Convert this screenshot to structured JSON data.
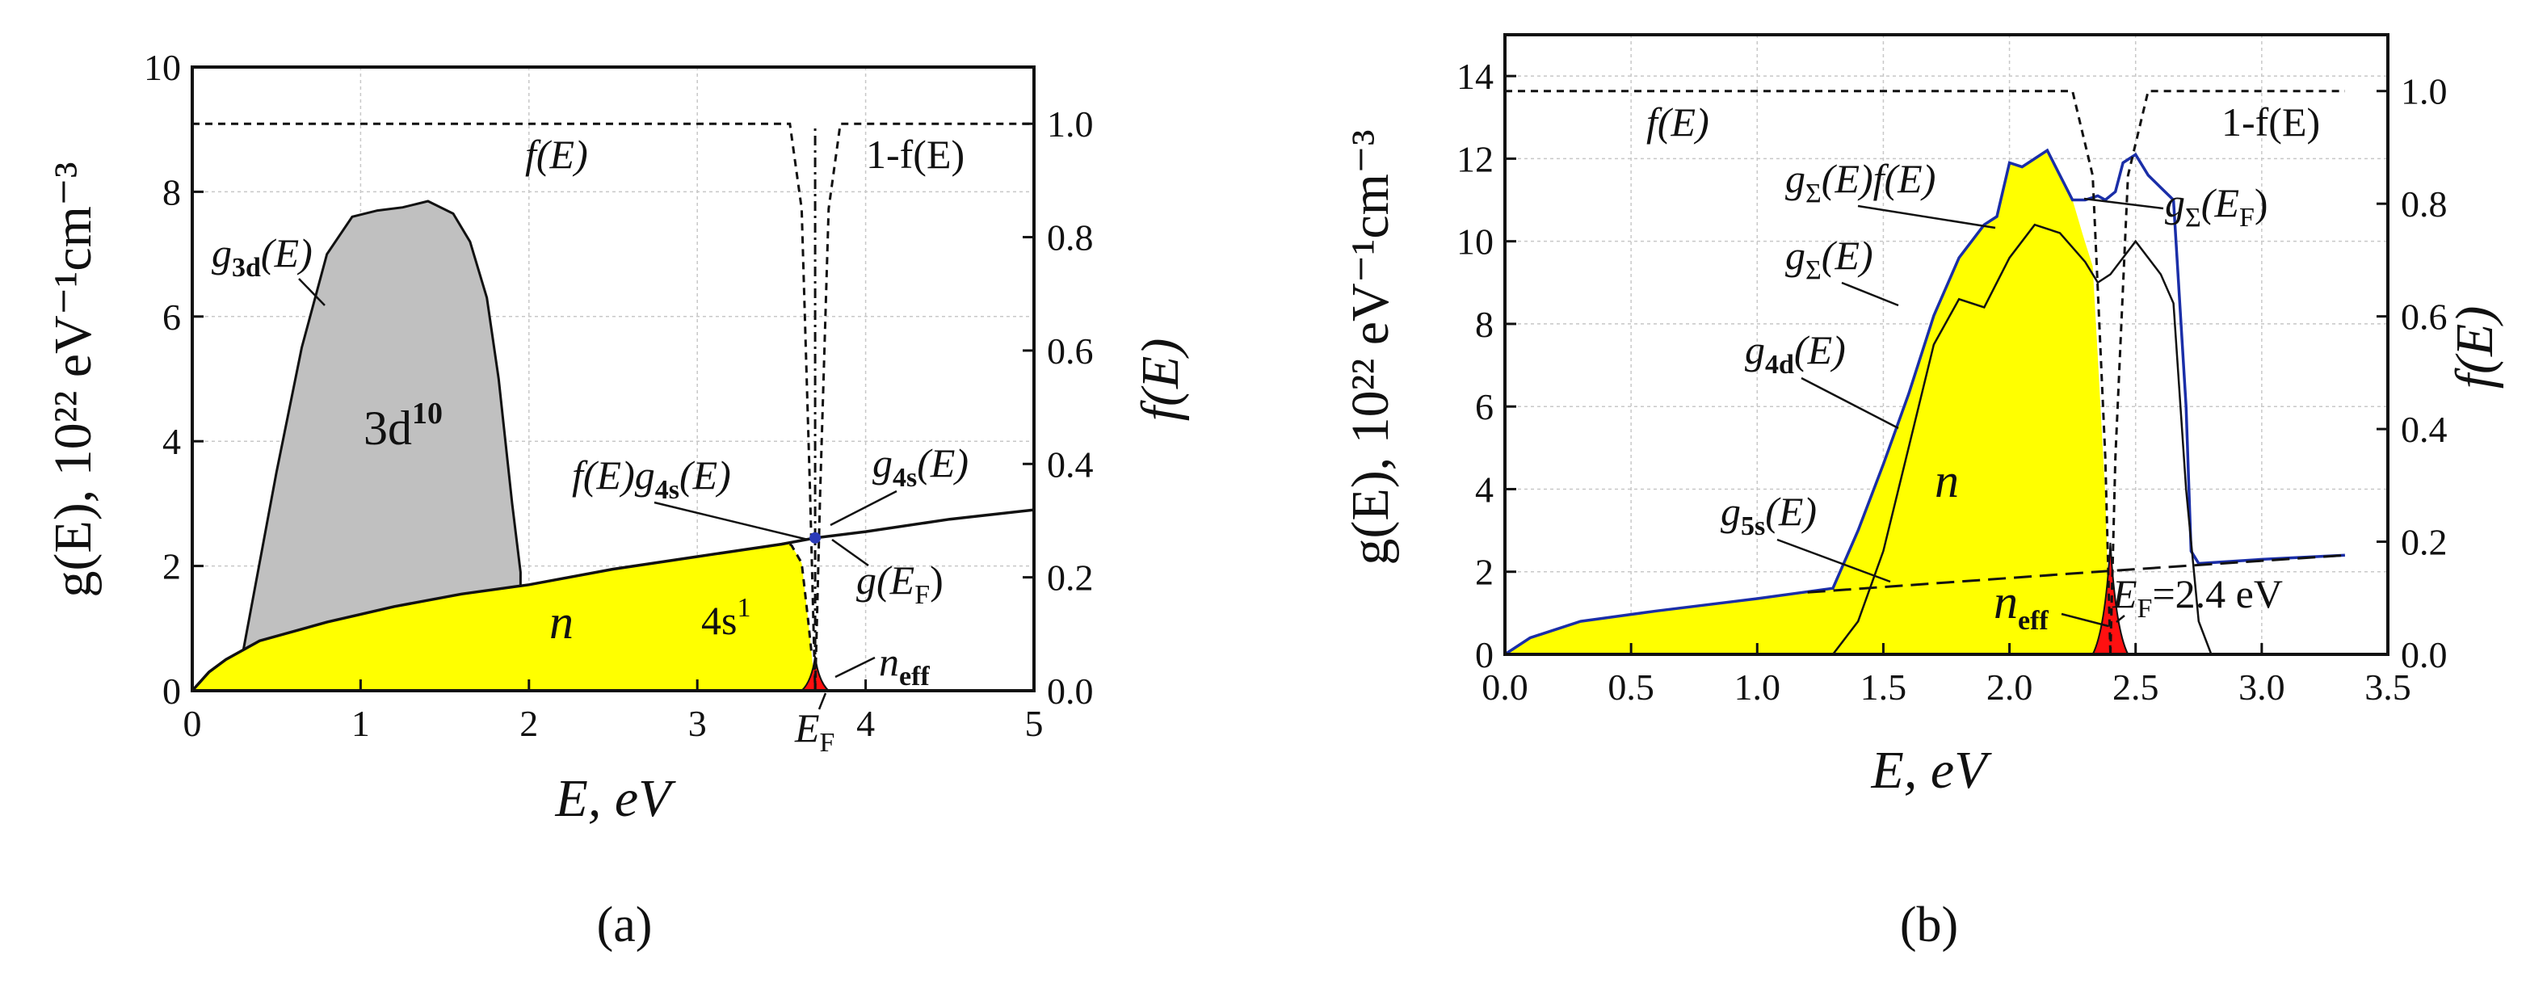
{
  "chart_data": [
    {
      "type": "area",
      "panel_label": "(a)",
      "xlabel": "E, eV",
      "ylabel": "g(E), 10²² eV⁻¹cm⁻³",
      "y2label": "f(E)",
      "xlim": [
        0,
        5
      ],
      "ylim": [
        0,
        10
      ],
      "y2lim": [
        0,
        1.1
      ],
      "xticks": [
        "0",
        "1",
        "2",
        "3",
        "4",
        "5"
      ],
      "yticks": [
        "0",
        "2",
        "4",
        "6",
        "8",
        "10"
      ],
      "y2ticks": [
        "0.0",
        "0.2",
        "0.4",
        "0.6",
        "0.8",
        "1.0"
      ],
      "fermi_energy": 3.7,
      "series": [
        {
          "name": "g3d(E)",
          "fill": "#c0c0c0",
          "x": [
            0.3,
            0.5,
            0.65,
            0.8,
            0.95,
            1.1,
            1.25,
            1.4,
            1.55,
            1.65,
            1.75,
            1.82,
            1.9,
            1.95
          ],
          "y": [
            0.6,
            3.5,
            5.5,
            7.0,
            7.6,
            7.7,
            7.75,
            7.85,
            7.65,
            7.2,
            6.3,
            5.0,
            3.0,
            1.9
          ]
        },
        {
          "name": "g4s(E)",
          "fill": "#ffff00",
          "x": [
            0,
            0.1,
            0.2,
            0.4,
            0.8,
            1.2,
            1.6,
            2.0,
            2.5,
            3.0,
            3.5,
            3.7,
            4.0,
            4.5,
            5.0
          ],
          "y": [
            0,
            0.3,
            0.5,
            0.8,
            1.1,
            1.35,
            1.55,
            1.7,
            1.95,
            2.15,
            2.35,
            2.45,
            2.55,
            2.75,
            2.9
          ]
        },
        {
          "name": "f(E)",
          "axis": "right",
          "x": [
            0,
            3.55,
            3.62,
            3.67,
            3.7
          ],
          "y": [
            1.0,
            1.0,
            0.85,
            0.35,
            0.0
          ]
        },
        {
          "name": "1-f(E)",
          "axis": "right",
          "x": [
            3.7,
            3.73,
            3.78,
            3.85,
            5.0
          ],
          "y": [
            0.0,
            0.35,
            0.85,
            1.0,
            1.0
          ]
        }
      ],
      "labels": {
        "g3d": "g",
        "g3d_sub": "3d",
        "g3d_arg": "(E)",
        "fE": "f(E)",
        "one_minus_fE": "1-f(E)",
        "d10": "3d",
        "d10_sup": "10",
        "fg4s": "f(E)g",
        "fg4s_sub": "4s",
        "fg4s_arg": "(E)",
        "g4s": "g",
        "g4s_sub": "4s",
        "g4s_arg": "(E)",
        "n": "n",
        "s1": "4s",
        "s1_sup": "1",
        "gEF": "g(E",
        "gEF_sub": "F",
        "gEF_close": ")",
        "neff": "n",
        "neff_sub": "eff",
        "EF": "E",
        "EF_sub": "F"
      }
    },
    {
      "type": "area",
      "panel_label": "(b)",
      "xlabel": "E, eV",
      "ylabel": "g(E), 10²² eV⁻¹cm⁻³",
      "y2label": "f(E)",
      "xlim": [
        0,
        3.5
      ],
      "ylim": [
        0,
        15
      ],
      "y2lim": [
        0,
        1.1
      ],
      "xticks": [
        "0.0",
        "0.5",
        "1.0",
        "1.5",
        "2.0",
        "2.5",
        "3.0",
        "3.5"
      ],
      "yticks": [
        "0",
        "2",
        "4",
        "6",
        "8",
        "10",
        "12",
        "14"
      ],
      "y2ticks": [
        "0.0",
        "0.2",
        "0.4",
        "0.6",
        "0.8",
        "1.0"
      ],
      "fermi_energy": 2.4,
      "fermi_label": "2.4 eV",
      "series": [
        {
          "name": "gΣ(E)",
          "color": "#1a2ea8",
          "x": [
            0,
            0.1,
            0.3,
            0.6,
            1.0,
            1.3,
            1.4,
            1.5,
            1.6,
            1.7,
            1.8,
            1.9,
            1.95,
            2.0,
            2.05,
            2.1,
            2.15,
            2.2,
            2.25,
            2.3,
            2.35,
            2.38,
            2.42,
            2.45,
            2.5,
            2.55,
            2.6,
            2.65,
            2.7,
            2.72,
            2.75,
            3.0,
            3.33
          ],
          "y": [
            0,
            0.4,
            0.8,
            1.05,
            1.35,
            1.6,
            3.0,
            4.6,
            6.3,
            8.2,
            9.6,
            10.4,
            10.6,
            11.9,
            11.8,
            12.0,
            12.2,
            11.6,
            11.0,
            11.0,
            11.1,
            11.0,
            11.2,
            11.9,
            12.1,
            11.6,
            11.3,
            11.0,
            6.0,
            2.5,
            2.2,
            2.3,
            2.4
          ]
        },
        {
          "name": "g4d(E)",
          "x": [
            1.3,
            1.4,
            1.5,
            1.6,
            1.7,
            1.8,
            1.9,
            2.0,
            2.1,
            2.2,
            2.3,
            2.35,
            2.4,
            2.45,
            2.5,
            2.55,
            2.6,
            2.65,
            2.7,
            2.75,
            2.8
          ],
          "y": [
            0,
            0.8,
            2.5,
            5.0,
            7.5,
            8.6,
            8.4,
            9.6,
            10.4,
            10.2,
            9.5,
            9.0,
            9.2,
            9.6,
            10.0,
            9.6,
            9.2,
            8.5,
            4.0,
            0.8,
            0
          ]
        },
        {
          "name": "g5s(E)",
          "x": [
            1.2,
            2.35,
            3.33
          ],
          "y": [
            1.5,
            2.0,
            2.4
          ]
        },
        {
          "name": "f(E)",
          "axis": "right",
          "x": [
            0,
            2.25,
            2.33,
            2.38,
            2.4
          ],
          "y": [
            1.0,
            1.0,
            0.85,
            0.35,
            0.0
          ]
        },
        {
          "name": "1-f(E)",
          "axis": "right",
          "x": [
            2.4,
            2.42,
            2.47,
            2.55,
            3.33
          ],
          "y": [
            0.0,
            0.35,
            0.85,
            1.0,
            1.0
          ]
        }
      ],
      "labels": {
        "fE": "f(E)",
        "one_minus_fE": "1-f(E)",
        "gsfE": "g",
        "gsfE_sub": "Σ",
        "gsfE_arg": "(E)f(E)",
        "gsEF": "g",
        "gsEF_sub": "Σ",
        "gsEF_arg": "(E",
        "gsEF_sub2": "F",
        "gsEF_close": ")",
        "gs": "g",
        "gs_sub": "Σ",
        "gs_arg": "(E)",
        "g4d": "g",
        "g4d_sub": "4d",
        "g4d_arg": "(E)",
        "n": "n",
        "g5s": "g",
        "g5s_sub": "5s",
        "g5s_arg": "(E)",
        "neff": "n",
        "neff_sub": "eff",
        "EF": "E",
        "EF_sub": "F",
        "EF_eq": "=2.4 eV"
      }
    }
  ]
}
